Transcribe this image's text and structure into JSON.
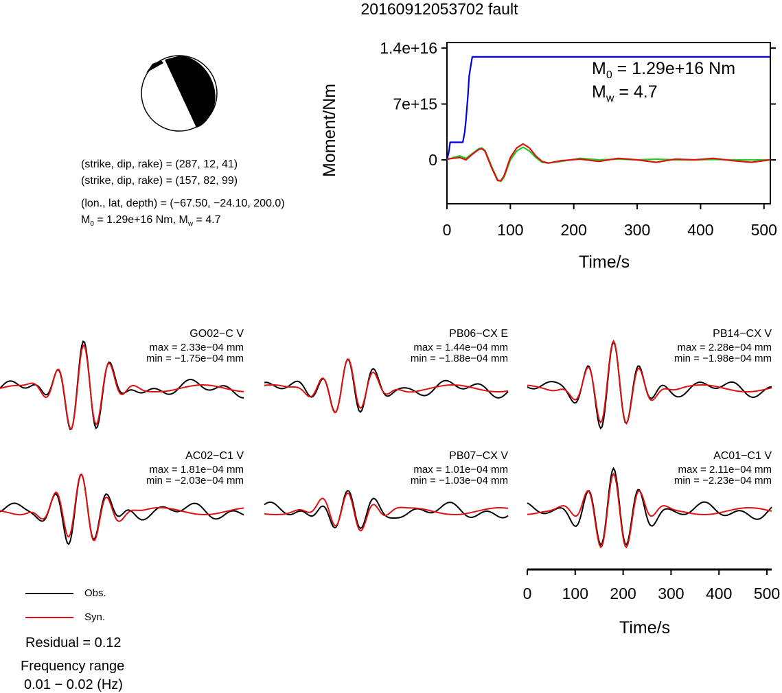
{
  "title": "20160912053702 fault",
  "mechanism": {
    "plane1": "(strike, dip, rake) = (287, 12, 41)",
    "plane2": "(strike, dip, rake) = (157, 82, 99)",
    "location": "(lon., lat, depth) = (−67.50, −24.10, 200.0)",
    "moment_prefix": "M",
    "moment_sub": "0",
    "moment_text": " = 1.29e+16 Nm, M",
    "mw_sub": "w",
    "mw_text": " = 4.7"
  },
  "annot": {
    "m0_prefix": "M",
    "m0_sub": "0",
    "m0_text": " = 1.29e+16 Nm",
    "mw_prefix": "M",
    "mw_sub": "w",
    "mw_text": " = 4.7"
  },
  "legend": {
    "obs": "Obs.",
    "syn": "Syn."
  },
  "residual": "Residual = 0.12",
  "freq_label": "Frequency range",
  "freq_value": "0.01 − 0.02 (Hz)",
  "colors": {
    "obs": "#000000",
    "syn": "#e01010",
    "moment": "#0000dd",
    "rate": "#22cc22",
    "rate_syn": "#e01010"
  },
  "chart_data": [
    {
      "type": "line",
      "title": "",
      "xlabel": "Time/s",
      "ylabel": "Moment/Nm",
      "xlim": [
        0,
        510
      ],
      "ylim": [
        -5500000000000000,
        14700000000000000
      ],
      "xticks": [
        0,
        100,
        200,
        300,
        400,
        500
      ],
      "xtick_labels": [
        "0",
        "100",
        "200",
        "300",
        "400",
        "500"
      ],
      "yticks": [
        0,
        7000000000000000,
        14000000000000000
      ],
      "ytick_labels": [
        "0",
        "7e+15",
        "1.4e+16"
      ],
      "series": [
        {
          "name": "moment",
          "x": [
            0,
            3,
            5,
            8,
            12,
            15,
            18,
            22,
            25,
            28,
            30,
            33,
            35,
            38,
            40,
            510
          ],
          "y": [
            0,
            1000000000000000,
            2200000000000000,
            2200000000000000,
            2200000000000000,
            2200000000000000,
            2200000000000000,
            2200000000000000,
            2200000000000000,
            3500000000000000,
            5000000000000000,
            8000000000000000,
            10500000000000000,
            12000000000000000,
            12900000000000000,
            12900000000000000
          ]
        },
        {
          "name": "rate",
          "x": [
            0,
            10,
            20,
            30,
            40,
            50,
            55,
            60,
            70,
            80,
            85,
            90,
            100,
            110,
            120,
            130,
            140,
            150,
            160,
            180,
            210,
            240,
            270,
            300,
            330,
            360,
            390,
            420,
            450,
            480,
            510
          ],
          "y": [
            0,
            300000000000000,
            500000000000000,
            200000000000000,
            800000000000000,
            1400000000000000,
            1500000000000000,
            1200000000000000,
            -700000000000000,
            -2500000000000000,
            -2700000000000000,
            -2200000000000000,
            0,
            1100000000000000,
            1600000000000000,
            1100000000000000,
            300000000000000,
            -300000000000000,
            -400000000000000,
            -200000000000000,
            200000000000000,
            0,
            100000000000000,
            0,
            100000000000000,
            0,
            0,
            50000000000000,
            0,
            0,
            0
          ]
        },
        {
          "name": "rate_fit",
          "x": [
            0,
            10,
            20,
            30,
            40,
            50,
            55,
            60,
            70,
            80,
            85,
            90,
            100,
            110,
            120,
            130,
            140,
            150,
            160,
            180,
            210,
            240,
            270,
            300,
            330,
            360,
            390,
            420,
            450,
            480,
            510
          ],
          "y": [
            100000000000000,
            200000000000000,
            300000000000000,
            0,
            700000000000000,
            1300000000000000,
            1400000000000000,
            1100000000000000,
            -900000000000000,
            -2600000000000000,
            -2600000000000000,
            -2000000000000000,
            300000000000000,
            1500000000000000,
            2000000000000000,
            1500000000000000,
            500000000000000,
            -200000000000000,
            -400000000000000,
            -100000000000000,
            100000000000000,
            -200000000000000,
            200000000000000,
            0,
            -300000000000000,
            100000000000000,
            0,
            200000000000000,
            -100000000000000,
            -300000000000000,
            0
          ]
        }
      ]
    },
    {
      "type": "line",
      "title": "",
      "xlabel": "Time/s",
      "ylabel": "",
      "xlim": [
        0,
        510
      ],
      "xticks": [
        0,
        100,
        200,
        300,
        400,
        500
      ],
      "xtick_labels": [
        "0",
        "100",
        "200",
        "300",
        "400",
        "500"
      ],
      "traces": [
        {
          "station": "GO02−C V",
          "max": "max = 2.33e−04 mm",
          "min": "min = −1.75e−04 mm",
          "peak_x": 175,
          "max_val": 2.33,
          "min_val": -1.75
        },
        {
          "station": "PB06−CX E",
          "max": "max = 1.44e−04 mm",
          "min": "min = −1.88e−04 mm",
          "peak_x": 175,
          "max_val": 1.44,
          "min_val": -1.88
        },
        {
          "station": "PB14−CX V",
          "max": "max = 2.28e−04 mm",
          "min": "min = −1.98e−04 mm",
          "peak_x": 180,
          "max_val": 2.28,
          "min_val": -1.98
        },
        {
          "station": "AC02−C1 V",
          "max": "max = 1.81e−04 mm",
          "min": "min = −2.03e−04 mm",
          "peak_x": 170,
          "max_val": 1.81,
          "min_val": -2.03
        },
        {
          "station": "PB07−CX V",
          "max": "max = 1.01e−04 mm",
          "min": "min = −1.03e−04 mm",
          "peak_x": 175,
          "max_val": 1.01,
          "min_val": -1.03
        },
        {
          "station": "AC01−C1 V",
          "max": "max = 2.11e−04 mm",
          "min": "min = −2.23e−04 mm",
          "peak_x": 180,
          "max_val": 2.11,
          "min_val": -2.23
        }
      ]
    }
  ]
}
